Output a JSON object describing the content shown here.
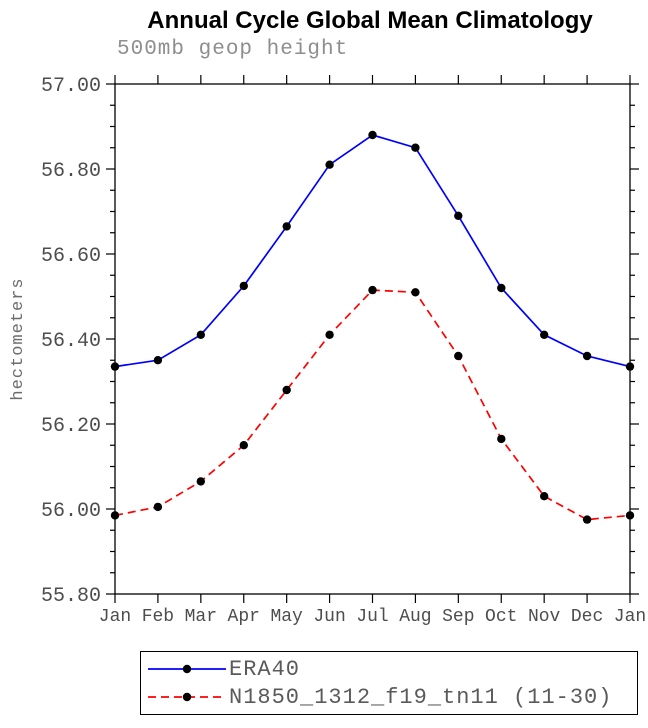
{
  "title": "Annual Cycle Global Mean Climatology",
  "subtitle": "500mb geop height",
  "chart_data": {
    "type": "line",
    "title": "Annual Cycle Global Mean Climatology",
    "subtitle": "500mb geop height",
    "xlabel": "",
    "ylabel": "hectometers",
    "categories": [
      "Jan",
      "Feb",
      "Mar",
      "Apr",
      "May",
      "Jun",
      "Jul",
      "Aug",
      "Sep",
      "Oct",
      "Nov",
      "Dec",
      "Jan"
    ],
    "series": [
      {
        "name": "ERA40",
        "color": "#0000ff",
        "style": "solid",
        "marker": "circle",
        "values": [
          56.335,
          56.35,
          56.41,
          56.525,
          56.665,
          56.81,
          56.88,
          56.85,
          56.69,
          56.52,
          56.41,
          56.36,
          56.335
        ]
      },
      {
        "name": "N1850_1312_f19_tn11 (11-30)",
        "color": "#ff0000",
        "style": "dashed",
        "marker": "circle",
        "values": [
          55.985,
          56.005,
          56.065,
          56.15,
          56.28,
          56.41,
          56.515,
          56.51,
          56.36,
          56.165,
          56.03,
          55.975,
          55.985
        ]
      }
    ],
    "marker_color": "#000000",
    "frame_color": "#000000",
    "ylim": [
      55.8,
      57.0
    ],
    "ytick_step": 0.2,
    "ytick_minor": 0.05,
    "yticks": [
      "57.00",
      "56.80",
      "56.60",
      "56.40",
      "56.20",
      "56.00",
      "55.80"
    ],
    "grid": false,
    "legend_position": "bottom"
  }
}
